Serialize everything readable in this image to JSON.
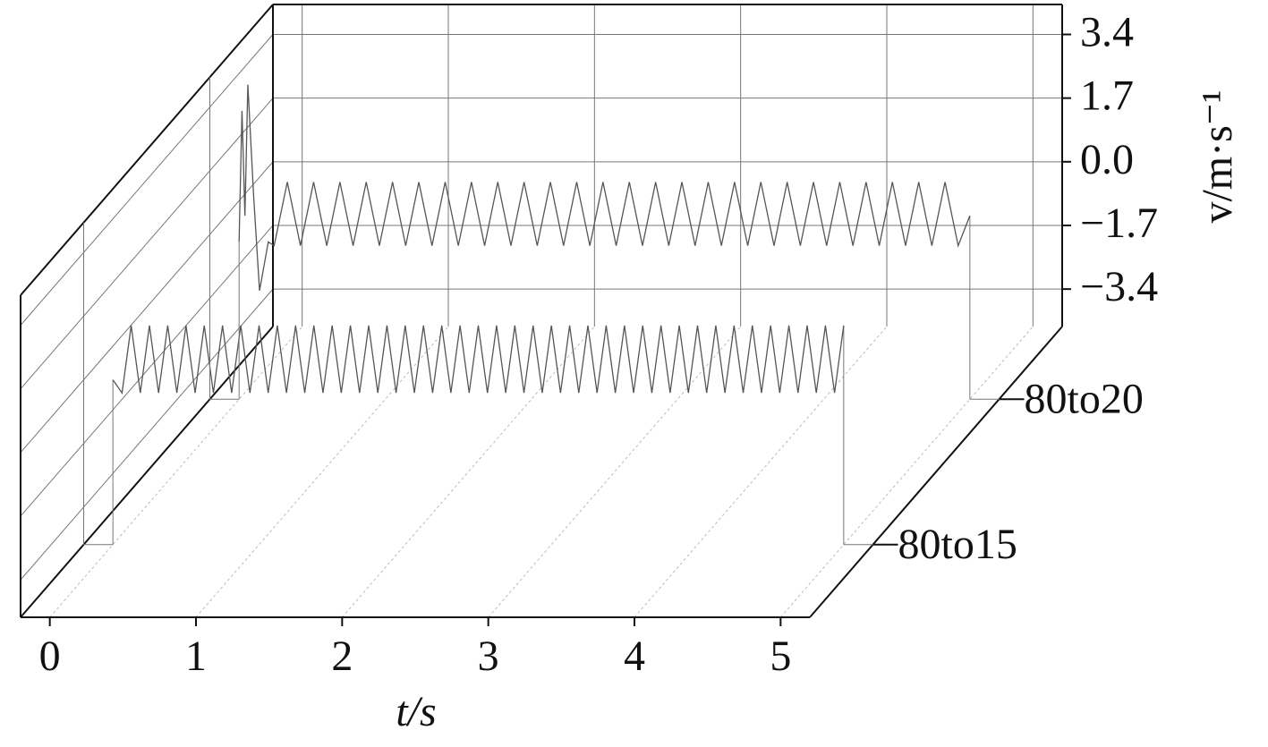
{
  "chart_data": {
    "type": "waterfall",
    "x_label": "t/s",
    "y_label": "v/m·s⁻¹",
    "xlim": [
      -0.2,
      5.2
    ],
    "xticks": [
      0,
      1,
      2,
      3,
      4,
      5
    ],
    "ylim": [
      -4.4,
      4.2
    ],
    "yticks": [
      3.4,
      1.7,
      {
        "value": 0,
        "label": "0.0"
      },
      {
        "value": -1.7,
        "label": "−1.7"
      },
      {
        "value": -3.4,
        "label": "−3.4"
      }
    ],
    "grid": true,
    "series": [
      {
        "name": "80to15",
        "color": "#555555",
        "x": [
          0,
          0.0625,
          0.125,
          0.1875,
          0.25,
          0.3125,
          0.375,
          0.4375,
          0.5,
          0.5625,
          0.625,
          0.6875,
          0.75,
          0.8125,
          0.875,
          0.9375,
          1,
          1.0625,
          1.125,
          1.1875,
          1.25,
          1.3125,
          1.375,
          1.4375,
          1.5,
          1.5625,
          1.625,
          1.6875,
          1.75,
          1.8125,
          1.875,
          1.9375,
          2,
          2.0625,
          2.125,
          2.1875,
          2.25,
          2.3125,
          2.375,
          2.4375,
          2.5,
          2.5625,
          2.625,
          2.6875,
          2.75,
          2.8125,
          2.875,
          2.9375,
          3,
          3.0625,
          3.125,
          3.1875,
          3.25,
          3.3125,
          3.375,
          3.4375,
          3.5,
          3.5625,
          3.625,
          3.6875,
          3.75,
          3.8125,
          3.875,
          3.9375,
          4,
          4.0625,
          4.125,
          4.1875,
          4.25,
          4.3125,
          4.375,
          4.4375,
          4.5,
          4.5625,
          4.625,
          4.6875,
          4.75,
          4.8125,
          4.875,
          4.9375,
          5
        ],
        "values": [
          0,
          -0.35,
          1.45,
          -0.35,
          1.45,
          -0.35,
          1.45,
          -0.35,
          1.45,
          -0.35,
          1.45,
          -0.35,
          1.45,
          -0.35,
          1.45,
          -0.35,
          1.45,
          -0.35,
          1.45,
          -0.35,
          1.45,
          -0.35,
          1.45,
          -0.35,
          1.45,
          -0.35,
          1.45,
          -0.35,
          1.45,
          -0.35,
          1.45,
          -0.35,
          1.45,
          -0.35,
          1.45,
          -0.35,
          1.45,
          -0.35,
          1.45,
          -0.35,
          1.45,
          -0.35,
          1.45,
          -0.35,
          1.45,
          -0.35,
          1.45,
          -0.35,
          1.45,
          -0.35,
          1.45,
          -0.35,
          1.45,
          -0.35,
          1.45,
          -0.35,
          1.45,
          -0.35,
          1.45,
          -0.35,
          1.45,
          -0.35,
          1.45,
          -0.35,
          1.45,
          -0.35,
          1.45,
          -0.35,
          1.45,
          -0.35,
          1.45,
          -0.35,
          1.45,
          -0.35,
          1.45,
          -0.35,
          1.45,
          -0.35,
          1.45,
          -0.35,
          1.45
        ]
      },
      {
        "name": "80to20",
        "color": "#555555",
        "x": [
          0,
          0.02,
          0.04,
          0.06,
          0.1,
          0.14,
          0.2,
          0.24,
          0.33,
          0.42,
          0.51,
          0.6,
          0.69,
          0.78,
          0.87,
          0.96,
          1.05,
          1.14,
          1.23,
          1.32,
          1.41,
          1.5,
          1.59,
          1.68,
          1.77,
          1.86,
          1.95,
          2.04,
          2.13,
          2.22,
          2.31,
          2.4,
          2.49,
          2.58,
          2.67,
          2.76,
          2.85,
          2.94,
          3.03,
          3.12,
          3.21,
          3.3,
          3.39,
          3.48,
          3.57,
          3.66,
          3.75,
          3.84,
          3.93,
          4.02,
          4.11,
          4.2,
          4.29,
          4.38,
          4.47,
          4.56,
          4.65,
          4.74,
          4.83,
          4.92,
          5
        ],
        "values": [
          -0.2,
          3.3,
          0.5,
          4.0,
          1.0,
          -1.5,
          -0.2,
          -0.3,
          1.4,
          -0.3,
          1.4,
          -0.3,
          1.4,
          -0.3,
          1.4,
          -0.3,
          1.4,
          -0.3,
          1.4,
          -0.3,
          1.4,
          -0.3,
          1.4,
          -0.3,
          1.4,
          -0.3,
          1.4,
          -0.3,
          1.4,
          -0.3,
          1.4,
          -0.3,
          1.4,
          -0.3,
          1.4,
          -0.3,
          1.4,
          -0.3,
          1.4,
          -0.3,
          1.4,
          -0.3,
          1.4,
          -0.3,
          1.4,
          -0.3,
          1.4,
          -0.3,
          1.4,
          -0.3,
          1.4,
          -0.3,
          1.4,
          -0.3,
          1.4,
          -0.3,
          1.4,
          -0.3,
          1.4,
          -0.3,
          0.5
        ]
      }
    ]
  }
}
